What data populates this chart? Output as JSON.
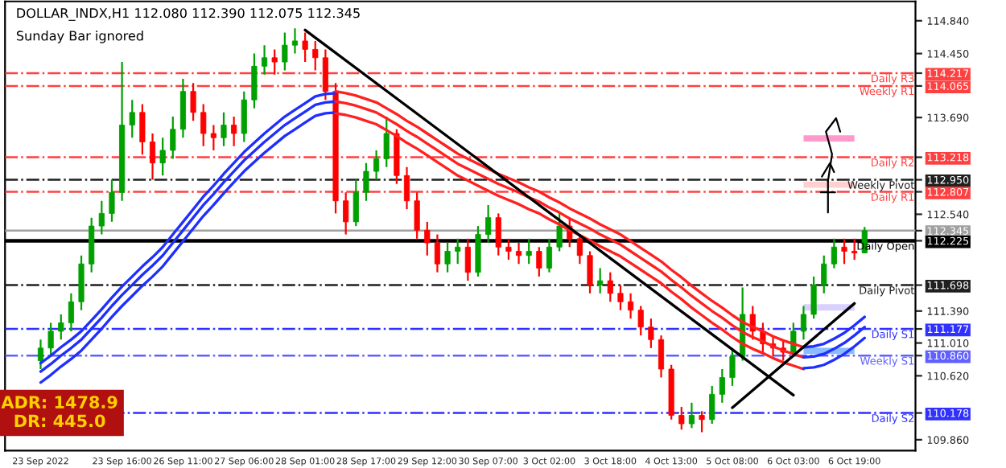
{
  "chart_data": {
    "type": "candlestick",
    "title": "DOLLAR_INDX,H1 112.080 112.390 112.075 112.345",
    "subtitle": "Sunday Bar ignored",
    "categories": [
      "23 Sep 2022",
      null,
      null,
      null,
      null,
      null,
      null,
      null,
      "23 Sep 16:00",
      null,
      null,
      null,
      null,
      null,
      "26 Sep 11:00",
      null,
      null,
      null,
      null,
      null,
      "27 Sep 06:00",
      null,
      null,
      null,
      null,
      null,
      "28 Sep 01:00",
      null,
      null,
      null,
      null,
      null,
      "28 Sep 17:00",
      null,
      null,
      null,
      null,
      null,
      "29 Sep 12:00",
      null,
      null,
      null,
      null,
      null,
      "30 Sep 07:00",
      null,
      null,
      null,
      null,
      null,
      "3 Oct 02:00",
      null,
      null,
      null,
      null,
      null,
      "3 Oct 18:00",
      null,
      null,
      null,
      null,
      null,
      "4 Oct 13:00",
      null,
      null,
      null,
      null,
      null,
      "5 Oct 08:00",
      null,
      null,
      null,
      null,
      null,
      "6 Oct 03:00",
      null,
      null,
      null,
      null,
      null,
      "6 Oct 19:00",
      null
    ],
    "ohlc": [
      [
        110.8,
        111.05,
        110.7,
        110.95
      ],
      [
        110.95,
        111.25,
        110.85,
        111.15
      ],
      [
        111.15,
        111.35,
        111.05,
        111.25
      ],
      [
        111.25,
        111.6,
        111.15,
        111.5
      ],
      [
        111.5,
        112.05,
        111.4,
        111.95
      ],
      [
        111.95,
        112.5,
        111.85,
        112.4
      ],
      [
        112.4,
        112.7,
        112.3,
        112.55
      ],
      [
        112.55,
        112.95,
        112.45,
        112.8
      ],
      [
        112.8,
        114.35,
        112.7,
        113.6
      ],
      [
        113.6,
        113.9,
        113.45,
        113.75
      ],
      [
        113.75,
        113.85,
        113.25,
        113.4
      ],
      [
        113.4,
        113.5,
        112.95,
        113.15
      ],
      [
        113.15,
        113.45,
        113.0,
        113.3
      ],
      [
        113.3,
        113.7,
        113.2,
        113.55
      ],
      [
        113.55,
        114.15,
        113.45,
        114.0
      ],
      [
        114.0,
        114.1,
        113.65,
        113.75
      ],
      [
        113.75,
        113.85,
        113.35,
        113.5
      ],
      [
        113.5,
        113.6,
        113.3,
        113.45
      ],
      [
        113.45,
        113.75,
        113.35,
        113.6
      ],
      [
        113.6,
        113.7,
        113.35,
        113.5
      ],
      [
        113.5,
        114.0,
        113.4,
        113.9
      ],
      [
        113.9,
        114.45,
        113.8,
        114.3
      ],
      [
        114.3,
        114.55,
        114.2,
        114.4
      ],
      [
        114.4,
        114.5,
        114.2,
        114.35
      ],
      [
        114.35,
        114.7,
        114.25,
        114.55
      ],
      [
        114.55,
        114.75,
        114.45,
        114.6
      ],
      [
        114.6,
        114.7,
        114.35,
        114.5
      ],
      [
        114.5,
        114.6,
        114.25,
        114.4
      ],
      [
        114.4,
        114.5,
        113.9,
        114.0
      ],
      [
        114.0,
        114.1,
        112.55,
        112.7
      ],
      [
        112.7,
        112.8,
        112.3,
        112.45
      ],
      [
        112.45,
        112.95,
        112.4,
        112.8
      ],
      [
        112.8,
        113.15,
        112.7,
        113.05
      ],
      [
        113.05,
        113.3,
        112.95,
        113.2
      ],
      [
        113.2,
        113.7,
        113.1,
        113.5
      ],
      [
        113.5,
        113.55,
        112.9,
        113.0
      ],
      [
        113.0,
        113.1,
        112.6,
        112.7
      ],
      [
        112.7,
        112.8,
        112.25,
        112.35
      ],
      [
        112.35,
        112.45,
        112.05,
        112.2
      ],
      [
        112.2,
        112.3,
        111.85,
        111.95
      ],
      [
        111.95,
        112.2,
        111.85,
        112.1
      ],
      [
        112.1,
        112.25,
        111.95,
        112.15
      ],
      [
        112.15,
        112.25,
        111.75,
        111.85
      ],
      [
        111.85,
        112.4,
        111.8,
        112.3
      ],
      [
        112.3,
        112.65,
        112.2,
        112.5
      ],
      [
        112.5,
        112.55,
        112.05,
        112.15
      ],
      [
        112.15,
        112.25,
        112.0,
        112.1
      ],
      [
        112.1,
        112.2,
        111.95,
        112.05
      ],
      [
        112.05,
        112.25,
        111.95,
        112.1
      ],
      [
        112.1,
        112.15,
        111.8,
        111.9
      ],
      [
        111.9,
        112.25,
        111.85,
        112.15
      ],
      [
        112.15,
        112.55,
        112.1,
        112.4
      ],
      [
        112.4,
        112.5,
        112.15,
        112.25
      ],
      [
        112.25,
        112.3,
        111.95,
        112.05
      ],
      [
        112.05,
        112.1,
        111.6,
        111.7
      ],
      [
        111.7,
        111.9,
        111.6,
        111.75
      ],
      [
        111.75,
        111.85,
        111.5,
        111.6
      ],
      [
        111.6,
        111.7,
        111.4,
        111.5
      ],
      [
        111.5,
        111.6,
        111.3,
        111.4
      ],
      [
        111.4,
        111.45,
        111.1,
        111.2
      ],
      [
        111.2,
        111.3,
        110.95,
        111.05
      ],
      [
        111.05,
        111.1,
        110.6,
        110.7
      ],
      [
        110.7,
        110.75,
        110.1,
        110.15
      ],
      [
        110.15,
        110.25,
        109.98,
        110.05
      ],
      [
        110.05,
        110.3,
        110.0,
        110.15
      ],
      [
        110.15,
        110.2,
        109.95,
        110.1
      ],
      [
        110.1,
        110.5,
        110.05,
        110.4
      ],
      [
        110.4,
        110.7,
        110.3,
        110.6
      ],
      [
        110.6,
        110.95,
        110.5,
        110.85
      ],
      [
        110.85,
        111.67,
        110.8,
        111.35
      ],
      [
        111.35,
        111.45,
        111.05,
        111.15
      ],
      [
        111.15,
        111.25,
        110.9,
        111.0
      ],
      [
        111.0,
        111.1,
        110.85,
        110.95
      ],
      [
        110.95,
        111.05,
        110.8,
        110.9
      ],
      [
        110.9,
        111.25,
        110.85,
        111.15
      ],
      [
        111.15,
        111.45,
        111.05,
        111.35
      ],
      [
        111.35,
        111.8,
        111.3,
        111.7
      ],
      [
        111.7,
        112.05,
        111.6,
        111.95
      ],
      [
        111.95,
        112.25,
        111.9,
        112.15
      ],
      [
        112.15,
        112.25,
        111.95,
        112.1
      ],
      [
        112.1,
        112.25,
        112.0,
        112.08
      ],
      [
        112.08,
        112.39,
        112.075,
        112.345
      ]
    ],
    "colors": [
      "#00a000",
      "#00a000",
      "#00a000",
      "#00a000",
      "#00a000",
      "#00a000",
      "#00a000",
      "#00a000",
      "#00a000",
      "#00a000",
      "#ff0000",
      "#ff0000",
      "#00a000",
      "#00a000",
      "#00a000",
      "#ff0000",
      "#ff0000",
      "#ff0000",
      "#00a000",
      "#ff0000",
      "#00a000",
      "#00a000",
      "#00a000",
      "#ff0000",
      "#00a000",
      "#00a000",
      "#ff0000",
      "#ff0000",
      "#ff0000",
      "#ff0000",
      "#ff0000",
      "#00a000",
      "#00a000",
      "#00a000",
      "#00a000",
      "#ff0000",
      "#ff0000",
      "#ff0000",
      "#ff0000",
      "#ff0000",
      "#00a000",
      "#00a000",
      "#ff0000",
      "#00a000",
      "#00a000",
      "#ff0000",
      "#ff0000",
      "#ff0000",
      "#00a000",
      "#ff0000",
      "#00a000",
      "#00a000",
      "#ff0000",
      "#ff0000",
      "#ff0000",
      "#00a000",
      "#ff0000",
      "#ff0000",
      "#ff0000",
      "#ff0000",
      "#ff0000",
      "#ff0000",
      "#ff0000",
      "#ff0000",
      "#00a000",
      "#ff0000",
      "#00a000",
      "#00a000",
      "#00a000",
      "#00a000",
      "#ff0000",
      "#ff0000",
      "#ff0000",
      "#ff0000",
      "#00a000",
      "#00a000",
      "#00a000",
      "#00a000",
      "#00a000",
      "#ff0000",
      "#ff0000",
      "#00a000"
    ],
    "series": [
      {
        "type": "line",
        "color": "#1f2fff",
        "values": [
          110.77,
          110.86,
          110.96,
          111.05,
          111.15,
          111.28,
          111.41,
          111.55,
          111.68,
          111.8,
          111.92,
          112.03,
          112.15,
          112.3,
          112.45,
          112.6,
          112.75,
          112.88,
          113.02,
          113.15,
          113.28,
          113.39,
          113.5,
          113.6,
          113.7,
          113.78,
          113.86,
          113.94,
          113.97,
          113.98,
          null,
          null,
          null,
          null,
          null,
          null,
          null,
          null,
          null,
          null,
          null,
          null,
          null,
          null,
          null,
          null,
          null,
          null,
          null,
          null,
          null,
          null,
          null,
          null,
          null,
          null,
          null,
          null,
          null,
          null,
          null,
          null,
          null,
          null,
          null,
          null,
          null,
          null,
          null,
          null,
          null,
          null,
          null,
          null,
          null,
          null,
          null,
          null,
          null,
          null,
          null,
          null
        ]
      },
      {
        "type": "line",
        "color": "#1f2fff",
        "values": [
          110.67,
          110.76,
          110.86,
          110.95,
          111.05,
          111.18,
          111.31,
          111.45,
          111.58,
          111.7,
          111.82,
          111.93,
          112.05,
          112.2,
          112.35,
          112.5,
          112.65,
          112.78,
          112.92,
          113.05,
          113.18,
          113.29,
          113.4,
          113.5,
          113.6,
          113.68,
          113.76,
          113.84,
          113.87,
          113.88,
          null,
          null,
          null,
          null,
          null,
          null,
          null,
          null,
          null,
          null,
          null,
          null,
          null,
          null,
          null,
          null,
          null,
          null,
          null,
          null,
          null,
          null,
          null,
          null,
          null,
          null,
          null,
          null,
          null,
          null,
          null,
          null,
          null,
          null,
          null,
          null,
          null,
          null,
          null,
          null,
          null,
          null,
          null,
          null,
          null,
          null,
          null,
          null,
          null,
          null,
          null,
          null
        ]
      },
      {
        "type": "line",
        "color": "#1f2fff",
        "values": [
          110.54,
          110.63,
          110.73,
          110.82,
          110.92,
          111.05,
          111.18,
          111.32,
          111.45,
          111.57,
          111.69,
          111.8,
          111.92,
          112.07,
          112.22,
          112.37,
          112.52,
          112.65,
          112.79,
          112.92,
          113.05,
          113.16,
          113.27,
          113.37,
          113.47,
          113.55,
          113.63,
          113.71,
          113.74,
          113.75,
          null,
          null,
          null,
          null,
          null,
          null,
          null,
          null,
          null,
          null,
          null,
          null,
          null,
          null,
          null,
          null,
          null,
          null,
          null,
          null,
          null,
          null,
          null,
          null,
          null,
          null,
          null,
          null,
          null,
          null,
          null,
          null,
          null,
          null,
          null,
          null,
          null,
          null,
          null,
          null,
          null,
          null,
          null,
          null,
          null,
          null,
          null,
          null,
          null,
          null,
          null,
          null
        ]
      },
      {
        "type": "line",
        "color": "#ff2020",
        "values": [
          null,
          null,
          null,
          null,
          null,
          null,
          null,
          null,
          null,
          null,
          null,
          null,
          null,
          null,
          null,
          null,
          null,
          null,
          null,
          null,
          null,
          null,
          null,
          null,
          null,
          null,
          null,
          null,
          null,
          114.0,
          113.98,
          113.95,
          113.91,
          113.87,
          113.8,
          113.73,
          113.65,
          113.58,
          113.5,
          113.42,
          113.34,
          113.26,
          113.2,
          113.14,
          113.08,
          113.02,
          112.97,
          112.92,
          112.86,
          112.81,
          112.74,
          112.68,
          112.61,
          112.55,
          112.49,
          112.42,
          112.36,
          112.3,
          112.22,
          112.14,
          112.06,
          111.98,
          111.88,
          111.79,
          111.69,
          111.6,
          111.51,
          111.43,
          111.34,
          111.26,
          111.2,
          111.15,
          111.09,
          111.04,
          111.0,
          110.96,
          null,
          null,
          null,
          null,
          null,
          null
        ]
      },
      {
        "type": "line",
        "color": "#ff2020",
        "values": [
          null,
          null,
          null,
          null,
          null,
          null,
          null,
          null,
          null,
          null,
          null,
          null,
          null,
          null,
          null,
          null,
          null,
          null,
          null,
          null,
          null,
          null,
          null,
          null,
          null,
          null,
          null,
          null,
          null,
          113.88,
          113.86,
          113.83,
          113.79,
          113.75,
          113.68,
          113.61,
          113.53,
          113.46,
          113.38,
          113.3,
          113.22,
          113.14,
          113.08,
          113.02,
          112.96,
          112.9,
          112.85,
          112.8,
          112.74,
          112.69,
          112.62,
          112.56,
          112.49,
          112.43,
          112.37,
          112.3,
          112.24,
          112.18,
          112.1,
          112.02,
          111.94,
          111.86,
          111.76,
          111.67,
          111.57,
          111.48,
          111.39,
          111.31,
          111.22,
          111.14,
          111.08,
          111.03,
          110.97,
          110.92,
          110.88,
          110.84,
          null,
          null,
          null,
          null,
          null,
          null
        ]
      },
      {
        "type": "line",
        "color": "#ff2020",
        "values": [
          null,
          null,
          null,
          null,
          null,
          null,
          null,
          null,
          null,
          null,
          null,
          null,
          null,
          null,
          null,
          null,
          null,
          null,
          null,
          null,
          null,
          null,
          null,
          null,
          null,
          null,
          null,
          null,
          null,
          113.74,
          113.72,
          113.69,
          113.65,
          113.61,
          113.54,
          113.47,
          113.39,
          113.32,
          113.24,
          113.16,
          113.08,
          113.0,
          112.94,
          112.88,
          112.82,
          112.76,
          112.71,
          112.66,
          112.6,
          112.55,
          112.48,
          112.42,
          112.35,
          112.29,
          112.23,
          112.16,
          112.1,
          112.04,
          111.96,
          111.88,
          111.8,
          111.72,
          111.62,
          111.53,
          111.43,
          111.34,
          111.25,
          111.17,
          111.08,
          111.0,
          110.94,
          110.89,
          110.83,
          110.78,
          110.74,
          110.7,
          null,
          null,
          null,
          null,
          null,
          null
        ]
      },
      {
        "type": "line",
        "color": "#1f2fff",
        "values": [
          null,
          null,
          null,
          null,
          null,
          null,
          null,
          null,
          null,
          null,
          null,
          null,
          null,
          null,
          null,
          null,
          null,
          null,
          null,
          null,
          null,
          null,
          null,
          null,
          null,
          null,
          null,
          null,
          null,
          null,
          null,
          null,
          null,
          null,
          null,
          null,
          null,
          null,
          null,
          null,
          null,
          null,
          null,
          null,
          null,
          null,
          null,
          null,
          null,
          null,
          null,
          null,
          null,
          null,
          null,
          null,
          null,
          null,
          null,
          null,
          null,
          null,
          null,
          null,
          null,
          null,
          null,
          null,
          null,
          null,
          null,
          null,
          null,
          null,
          null,
          110.96,
          110.97,
          111.0,
          111.06,
          111.13,
          111.22,
          111.32
        ]
      },
      {
        "type": "line",
        "color": "#1f2fff",
        "values": [
          null,
          null,
          null,
          null,
          null,
          null,
          null,
          null,
          null,
          null,
          null,
          null,
          null,
          null,
          null,
          null,
          null,
          null,
          null,
          null,
          null,
          null,
          null,
          null,
          null,
          null,
          null,
          null,
          null,
          null,
          null,
          null,
          null,
          null,
          null,
          null,
          null,
          null,
          null,
          null,
          null,
          null,
          null,
          null,
          null,
          null,
          null,
          null,
          null,
          null,
          null,
          null,
          null,
          null,
          null,
          null,
          null,
          null,
          null,
          null,
          null,
          null,
          null,
          null,
          null,
          null,
          null,
          null,
          null,
          null,
          null,
          null,
          null,
          null,
          null,
          110.84,
          110.85,
          110.88,
          110.94,
          111.01,
          111.1,
          111.2
        ]
      },
      {
        "type": "line",
        "color": "#1f2fff",
        "values": [
          null,
          null,
          null,
          null,
          null,
          null,
          null,
          null,
          null,
          null,
          null,
          null,
          null,
          null,
          null,
          null,
          null,
          null,
          null,
          null,
          null,
          null,
          null,
          null,
          null,
          null,
          null,
          null,
          null,
          null,
          null,
          null,
          null,
          null,
          null,
          null,
          null,
          null,
          null,
          null,
          null,
          null,
          null,
          null,
          null,
          null,
          null,
          null,
          null,
          null,
          null,
          null,
          null,
          null,
          null,
          null,
          null,
          null,
          null,
          null,
          null,
          null,
          null,
          null,
          null,
          null,
          null,
          null,
          null,
          null,
          null,
          null,
          null,
          null,
          null,
          110.71,
          110.72,
          110.75,
          110.81,
          110.88,
          110.97,
          111.07
        ]
      },
      {
        "type": "line",
        "color": "#000000",
        "x": [
          "28 Sep 01:00",
          "6 Oct 03:00"
        ],
        "values": [
          114.73,
          110.39
        ]
      },
      {
        "type": "line",
        "color": "#000000",
        "x": [
          "5 Oct 08:00",
          "6 Oct 19:00"
        ],
        "values": [
          110.24,
          111.48
        ]
      }
    ],
    "ref_lines": [
      {
        "axis": "y",
        "value": 114.217,
        "label": "Daily R3",
        "color": "#ff4040",
        "line_style": "dashdot"
      },
      {
        "axis": "y",
        "value": 114.065,
        "label": "Weekly R1",
        "color": "#ff4040",
        "line_style": "dashdot"
      },
      {
        "axis": "y",
        "value": 113.218,
        "label": "Daily R2",
        "color": "#ff4040",
        "line_style": "dashdot"
      },
      {
        "axis": "y",
        "value": 112.95,
        "label": "Weekly Pivot",
        "color": "#202020",
        "line_style": "dashdot"
      },
      {
        "axis": "y",
        "value": 112.807,
        "label": "Daily R1",
        "color": "#ff4040",
        "line_style": "dashdot"
      },
      {
        "axis": "y",
        "value": 111.698,
        "label": "Daily Pivot",
        "color": "#202020",
        "line_style": "dashdot"
      },
      {
        "axis": "y",
        "value": 112.225,
        "label": "Daily Open",
        "color": "#000000",
        "line_style": "solid"
      },
      {
        "axis": "y",
        "value": 111.177,
        "label": "Daily S1",
        "color": "#3030ff",
        "line_style": "dashdot"
      },
      {
        "axis": "y",
        "value": 110.86,
        "label": "Weekly S1",
        "color": "#6060ff",
        "line_style": "dashdot"
      },
      {
        "axis": "y",
        "value": 110.178,
        "label": "Daily S2",
        "color": "#3030ff",
        "line_style": "dashdot"
      },
      {
        "axis": "y",
        "value": 112.345,
        "label": null,
        "color": "#a0a0a0",
        "line_style": "solid"
      }
    ],
    "annotations": [
      "ADR: 1478.9",
      "DR: 445.0"
    ],
    "ylim": [
      109.73,
      115.07
    ],
    "yticks": [
      {
        "value": 114.84,
        "label": "114.840"
      },
      {
        "value": 114.45,
        "label": "114.450"
      },
      {
        "value": 114.217,
        "label": "114.217"
      },
      {
        "value": 114.065,
        "label": "114.065"
      },
      {
        "value": 113.69,
        "label": "113.690"
      },
      {
        "value": 113.218,
        "label": "113.218"
      },
      {
        "value": 112.95,
        "label": "112.950"
      },
      {
        "value": 112.807,
        "label": "112.807"
      },
      {
        "value": 112.54,
        "label": "112.540"
      },
      {
        "value": 112.345,
        "label": "112.345"
      },
      {
        "value": 112.225,
        "label": "112.225"
      },
      {
        "value": 111.698,
        "label": "111.698"
      },
      {
        "value": 111.39,
        "label": "111.390"
      },
      {
        "value": 111.177,
        "label": "111.177"
      },
      {
        "value": 111.01,
        "label": "111.010"
      },
      {
        "value": 110.86,
        "label": "110.860"
      },
      {
        "value": 110.62,
        "label": "110.620"
      },
      {
        "value": 110.178,
        "label": "110.178"
      },
      {
        "value": 109.86,
        "label": "109.860"
      }
    ],
    "grid": false,
    "legend": false
  }
}
